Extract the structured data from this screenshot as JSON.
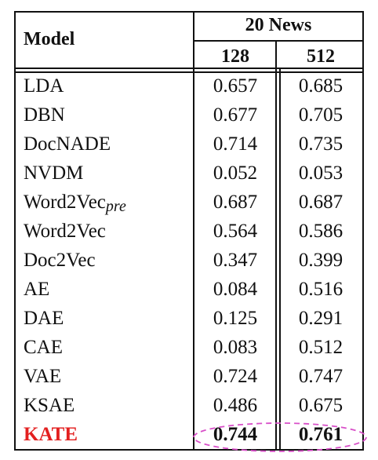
{
  "table": {
    "header": {
      "model_label": "Model",
      "group_label": "20 News",
      "col1": "128",
      "col2": "512"
    },
    "rows": [
      {
        "model": "LDA",
        "v128": "0.657",
        "v512": "0.685"
      },
      {
        "model": "DBN",
        "v128": "0.677",
        "v512": "0.705"
      },
      {
        "model": "DocNADE",
        "v128": "0.714",
        "v512": "0.735"
      },
      {
        "model": "NVDM",
        "v128": "0.052",
        "v512": "0.053"
      },
      {
        "model": "Word2Vec",
        "model_sub": "pre",
        "v128": "0.687",
        "v512": "0.687"
      },
      {
        "model": "Word2Vec",
        "v128": "0.564",
        "v512": "0.586"
      },
      {
        "model": "Doc2Vec",
        "v128": "0.347",
        "v512": "0.399"
      },
      {
        "model": "AE",
        "v128": "0.084",
        "v512": "0.516"
      },
      {
        "model": "DAE",
        "v128": "0.125",
        "v512": "0.291"
      },
      {
        "model": "CAE",
        "v128": "0.083",
        "v512": "0.512"
      },
      {
        "model": "VAE",
        "v128": "0.724",
        "v512": "0.747"
      },
      {
        "model": "KSAE",
        "v128": "0.486",
        "v512": "0.675"
      },
      {
        "model": "KATE",
        "v128": "0.744",
        "v512": "0.761"
      }
    ],
    "highlight_color": "#e32020",
    "ellipse_color": "#d84fc8"
  }
}
